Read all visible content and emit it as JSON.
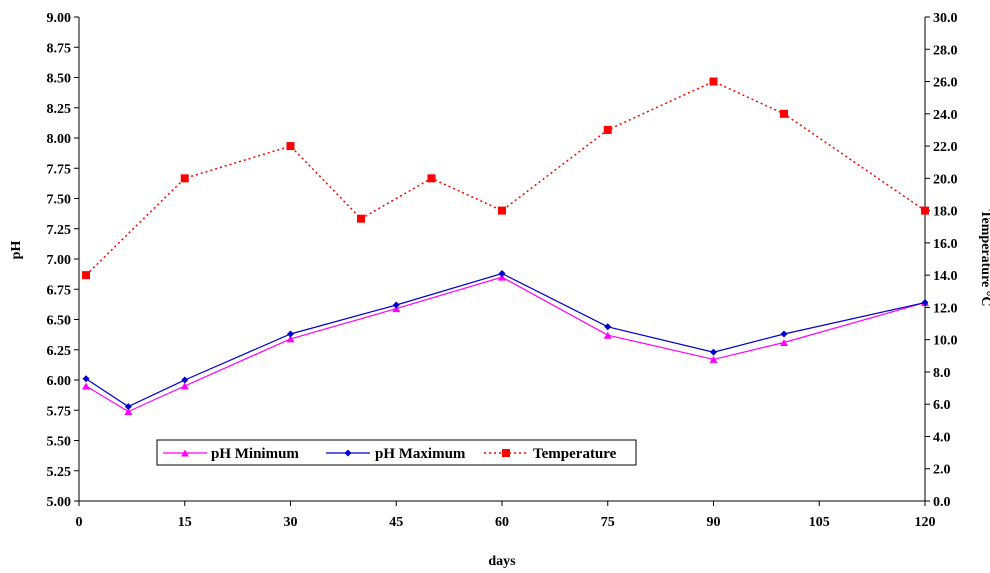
{
  "chart_data": {
    "type": "line",
    "xlabel": "days",
    "ylabel_left": "pH",
    "ylabel_right": "Temperature °C",
    "xlim": [
      0,
      120
    ],
    "ylim_left": [
      5.0,
      9.0
    ],
    "ylim_right": [
      0.0,
      30.0
    ],
    "x_ticks": [
      "0",
      "15",
      "30",
      "45",
      "60",
      "75",
      "90",
      "105",
      "120"
    ],
    "y_left_ticks": [
      "5.00",
      "5.25",
      "5.50",
      "5.75",
      "6.00",
      "6.25",
      "6.50",
      "6.75",
      "7.00",
      "7.25",
      "7.50",
      "7.75",
      "8.00",
      "8.25",
      "8.50",
      "8.75",
      "9.00"
    ],
    "y_right_ticks": [
      "0.0",
      "2.0",
      "4.0",
      "6.0",
      "8.0",
      "10.0",
      "12.0",
      "14.0",
      "16.0",
      "18.0",
      "20.0",
      "22.0",
      "24.0",
      "26.0",
      "28.0",
      "30.0"
    ],
    "grid": false,
    "legend_position": "bottom-left",
    "series": [
      {
        "name": "pH Minimum",
        "axis": "left",
        "color": "#ff00ff",
        "marker": "triangle",
        "line": "solid",
        "points": [
          [
            1,
            5.95
          ],
          [
            7,
            5.74
          ],
          [
            15,
            5.95
          ],
          [
            30,
            6.34
          ],
          [
            45,
            6.59
          ],
          [
            60,
            6.85
          ],
          [
            75,
            6.37
          ],
          [
            90,
            6.17
          ],
          [
            100,
            6.31
          ],
          [
            120,
            6.64
          ]
        ]
      },
      {
        "name": "pH Maximum",
        "axis": "left",
        "color": "#0000cc",
        "marker": "diamond",
        "line": "solid",
        "points": [
          [
            1,
            6.01
          ],
          [
            7,
            5.78
          ],
          [
            15,
            6.0
          ],
          [
            30,
            6.38
          ],
          [
            45,
            6.62
          ],
          [
            60,
            6.88
          ],
          [
            75,
            6.44
          ],
          [
            90,
            6.23
          ],
          [
            100,
            6.38
          ],
          [
            120,
            6.64
          ]
        ]
      },
      {
        "name": "Temperature",
        "axis": "right",
        "color": "#ff0000",
        "marker": "square",
        "line": "dotted",
        "points": [
          [
            1,
            14.0
          ],
          [
            15,
            20.0
          ],
          [
            30,
            22.0
          ],
          [
            40,
            17.5
          ],
          [
            50,
            20.0
          ],
          [
            60,
            18.0
          ],
          [
            75,
            23.0
          ],
          [
            90,
            26.0
          ],
          [
            100,
            24.0
          ],
          [
            120,
            18.0
          ]
        ]
      }
    ]
  }
}
